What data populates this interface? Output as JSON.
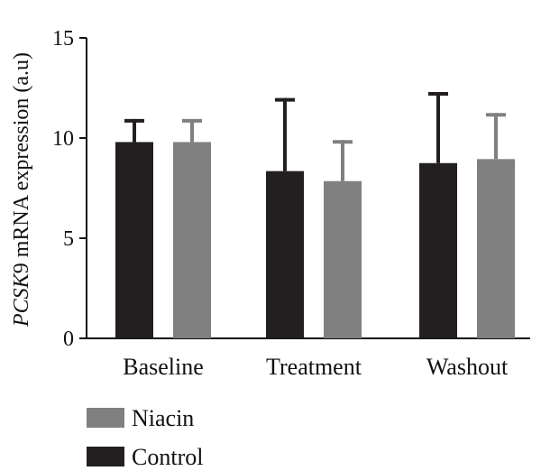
{
  "chart_data": {
    "type": "bar",
    "ylabel_italic": "PCSK",
    "ylabel_rest": "9 mRNA expression (a.u)",
    "categories": [
      "Baseline",
      "Treatment",
      "Washout"
    ],
    "ylim": [
      0,
      15
    ],
    "yticks": [
      0,
      5,
      10,
      15
    ],
    "grid": false,
    "legend_position": "bottom-left",
    "series": [
      {
        "name": "Control",
        "color": "#231f20",
        "values": [
          9.8,
          8.35,
          8.75
        ],
        "error": [
          1.15,
          3.65,
          3.55
        ]
      },
      {
        "name": "Niacin",
        "color": "#808080",
        "values": [
          9.8,
          7.85,
          8.95
        ],
        "error": [
          1.15,
          2.05,
          2.3
        ]
      }
    ],
    "legend_order": [
      "Niacin",
      "Control"
    ]
  }
}
